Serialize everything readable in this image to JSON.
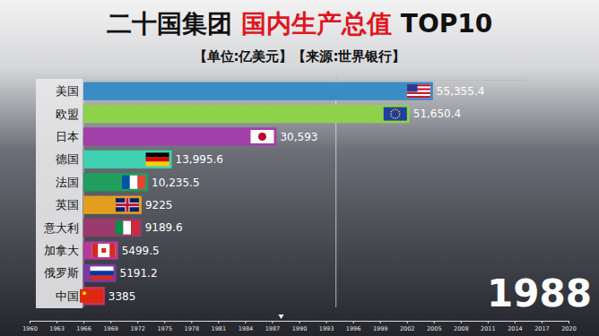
{
  "chart_data": {
    "type": "bar",
    "orientation": "horizontal",
    "title": [
      "二十国集团",
      "国内生产总值",
      "TOP10"
    ],
    "subtitle": "【单位:亿美元】【来源:世界银行】",
    "categories": [
      "美国",
      "欧盟",
      "日本",
      "德国",
      "法国",
      "英国",
      "意大利",
      "加拿大",
      "俄罗斯",
      "中国"
    ],
    "values": [
      55355.4,
      51650.4,
      30593,
      13995.6,
      10235.5,
      9225,
      9189.6,
      5499.5,
      5191.2,
      3385
    ],
    "value_labels": [
      "55,355.4",
      "51,650.4",
      "30,593",
      "13,995.6",
      "10,235.5",
      "9225",
      "9189.6",
      "5499.5",
      "5191.2",
      "3385"
    ],
    "colors": [
      "#3a8cc4",
      "#8ed14b",
      "#a23fa8",
      "#3fd1b1",
      "#1f9e5e",
      "#e39e1f",
      "#9b3a6c",
      "#b6399c",
      "#7a3aa2",
      "#cc3262"
    ],
    "data_labels": true,
    "xlim": [
      0,
      70000
    ],
    "xticks": [
      0,
      40000
    ],
    "grid": true,
    "tick_labels": false,
    "timeline": {
      "xlim": [
        1960,
        2020
      ],
      "xticks": [
        1960,
        1963,
        1966,
        1969,
        1972,
        1975,
        1978,
        1981,
        1984,
        1987,
        1990,
        1993,
        1996,
        1999,
        2002,
        2005,
        2008,
        2011,
        2014,
        2017,
        2020
      ],
      "value": 1988
    }
  }
}
